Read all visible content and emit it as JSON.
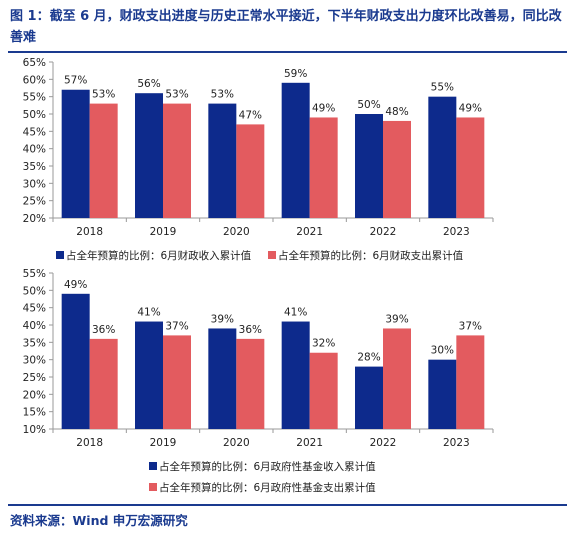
{
  "header": {
    "title": "图 1：截至 6 月，财政支出进度与历史正常水平接近，下半年财政支出力度环比改善易，同比改善难"
  },
  "footer": {
    "source": "资料来源：Wind  申万宏源研究"
  },
  "colors": {
    "series_1": "#0d2a8c",
    "series_2": "#e35b5f",
    "brand": "#1a3a8f"
  },
  "chart_data": [
    {
      "type": "bar",
      "categories": [
        "2018",
        "2019",
        "2020",
        "2021",
        "2022",
        "2023"
      ],
      "series": [
        {
          "name": "占全年预算的比例：6月财政收入累计值",
          "values": [
            57,
            56,
            53,
            59,
            50,
            55
          ]
        },
        {
          "name": "占全年预算的比例：6月财政支出累计值",
          "values": [
            53,
            53,
            47,
            49,
            48,
            49
          ]
        }
      ],
      "ylim": [
        20,
        65
      ],
      "yticks": [
        "20%",
        "25%",
        "30%",
        "35%",
        "40%",
        "45%",
        "50%",
        "55%",
        "60%",
        "65%"
      ],
      "data_labels": [
        [
          "57%",
          "56%",
          "53%",
          "59%",
          "50%",
          "55%"
        ],
        [
          "53%",
          "53%",
          "47%",
          "49%",
          "48%",
          "49%"
        ]
      ],
      "legend_position": "bottom"
    },
    {
      "type": "bar",
      "categories": [
        "2018",
        "2019",
        "2020",
        "2021",
        "2022",
        "2023"
      ],
      "series": [
        {
          "name": "占全年预算的比例：6月政府性基金收入累计值",
          "values": [
            49,
            41,
            39,
            41,
            28,
            30
          ]
        },
        {
          "name": "占全年预算的比例：6月政府性基金支出累计值",
          "values": [
            36,
            37,
            36,
            32,
            39,
            37
          ]
        }
      ],
      "ylim": [
        10,
        55
      ],
      "yticks": [
        "10%",
        "15%",
        "20%",
        "25%",
        "30%",
        "35%",
        "40%",
        "45%",
        "50%",
        "55%"
      ],
      "data_labels": [
        [
          "49%",
          "41%",
          "39%",
          "41%",
          "28%",
          "30%"
        ],
        [
          "36%",
          "37%",
          "36%",
          "32%",
          "39%",
          "37%"
        ]
      ],
      "legend_position": "bottom"
    }
  ]
}
